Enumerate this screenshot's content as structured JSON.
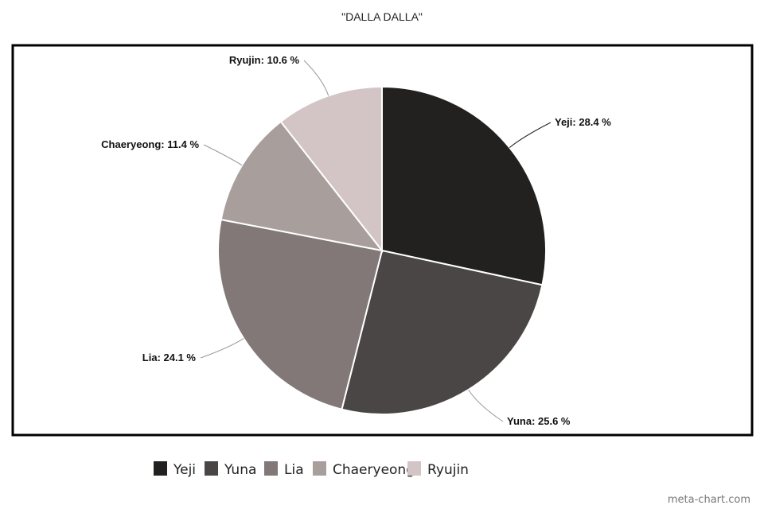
{
  "chart_data": {
    "type": "pie",
    "title": "\"DALLA DALLA\"",
    "start_angle": "top, clockwise",
    "categories": [
      "Yeji",
      "Yuna",
      "Lia",
      "Chaeryeong",
      "Ryujin"
    ],
    "values": [
      28.4,
      25.6,
      24.1,
      11.4,
      10.6
    ],
    "data_labels": [
      "Yeji: 28.4 %",
      "Yuna: 25.6 %",
      "Lia: 24.1 %",
      "Chaeryeong: 11.4 %",
      "Ryujin: 10.6 %"
    ],
    "colors": [
      "#232120",
      "#4a4645",
      "#817877",
      "#a89e9c",
      "#d3c5c5"
    ],
    "legend_position": "bottom"
  },
  "watermark": "meta-chart.com"
}
